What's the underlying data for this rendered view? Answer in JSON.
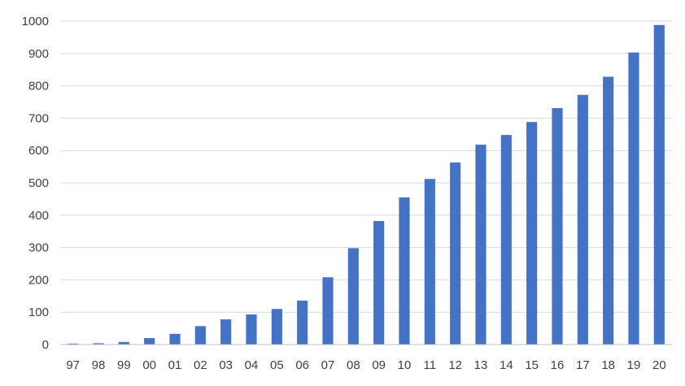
{
  "chart_data": {
    "type": "bar",
    "title": "",
    "xlabel": "",
    "ylabel": "",
    "categories": [
      "97",
      "98",
      "99",
      "00",
      "01",
      "02",
      "03",
      "04",
      "05",
      "06",
      "07",
      "08",
      "09",
      "10",
      "11",
      "12",
      "13",
      "14",
      "15",
      "16",
      "17",
      "18",
      "19",
      "20"
    ],
    "series": [
      {
        "values": [
          3,
          4,
          8,
          20,
          33,
          57,
          78,
          93,
          110,
          136,
          208,
          298,
          382,
          455,
          512,
          563,
          618,
          648,
          688,
          731,
          772,
          828,
          903,
          988
        ]
      }
    ],
    "ylim": [
      0,
      1000
    ],
    "yticks": [
      0,
      100,
      200,
      300,
      400,
      500,
      600,
      700,
      800,
      900,
      1000
    ],
    "grid": true,
    "legend": "none",
    "colors": {
      "bar": "#4472c4",
      "grid": "#d9d9d9",
      "text": "#404040"
    }
  }
}
